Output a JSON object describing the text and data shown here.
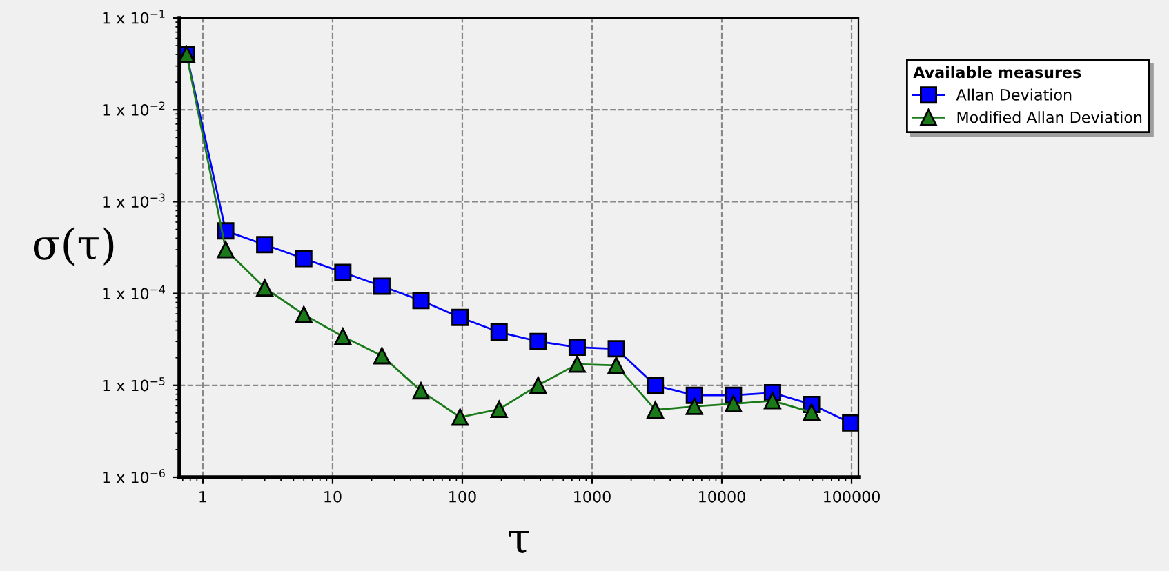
{
  "chart_data": {
    "type": "line",
    "xlabel": "τ",
    "ylabel": "σ(τ)",
    "legend_title": "Available measures",
    "log": "xy",
    "grid": true,
    "legend": "top right",
    "line_style": "solid",
    "xlim": [
      0.66,
      113000
    ],
    "xticks": [
      1,
      10,
      100,
      1000,
      10000,
      100000
    ],
    "ylim": [
      1e-06,
      0.1
    ],
    "yticks": [
      {
        "value": 1e-06,
        "label": "1 x 10$^{−6}$"
      },
      {
        "value": 1e-05,
        "label": "1 x 10$^{−5}$"
      },
      {
        "value": 0.0001,
        "label": "1 x 10$^{−4}$"
      },
      {
        "value": 0.001,
        "label": "1 x 10$^{−3}$"
      },
      {
        "value": 0.01,
        "label": "1 x 10$^{−2}$"
      },
      {
        "value": 0.1,
        "label": "1 x 10$^{−1}$"
      }
    ],
    "series": [
      {
        "name": "Allan Deviation",
        "color": "#0000ff",
        "marker": "square",
        "x": [
          0.75,
          1.5,
          3,
          6,
          12,
          24,
          48,
          96,
          192,
          384,
          768,
          1536,
          3072,
          6144,
          12288,
          24576,
          49152,
          98304
        ],
        "values": [
          0.04,
          0.00048,
          0.00034,
          0.00024,
          0.00017,
          0.00012,
          8.4e-05,
          5.5e-05,
          3.8e-05,
          3e-05,
          2.6e-05,
          2.5e-05,
          1e-05,
          7.8e-06,
          7.8e-06,
          8.3e-06,
          6.2e-06,
          3.9e-06
        ]
      },
      {
        "name": "Modified Allan Deviation",
        "color": "#1a7a1a",
        "marker": "triangle",
        "x": [
          0.75,
          1.5,
          3,
          6,
          12,
          24,
          48,
          96,
          192,
          384,
          768,
          1536,
          3072,
          6144,
          12288,
          24576,
          49152
        ],
        "values": [
          0.04,
          0.0003,
          0.000115,
          5.9e-05,
          3.4e-05,
          2.1e-05,
          8.7e-06,
          4.5e-06,
          5.5e-06,
          1e-05,
          1.7e-05,
          1.65e-05,
          5.4e-06,
          5.9e-06,
          6.3e-06,
          6.8e-06,
          5.1e-06
        ]
      }
    ]
  }
}
